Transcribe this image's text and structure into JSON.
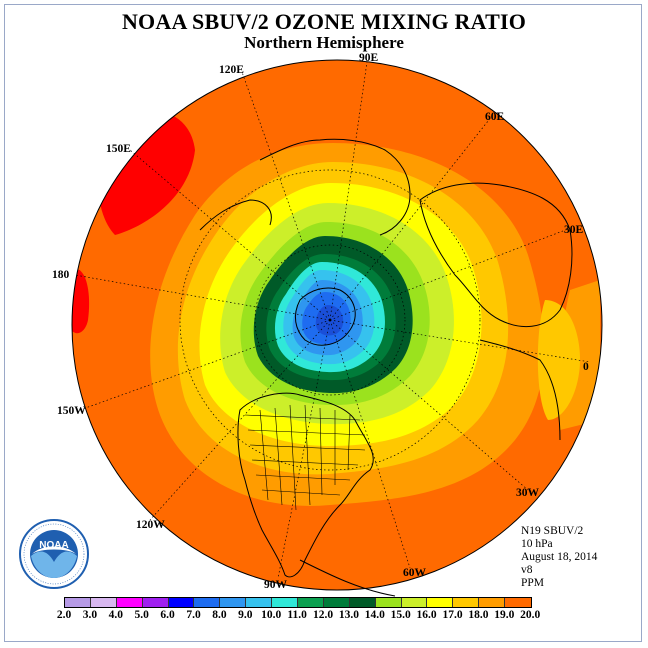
{
  "header": {
    "title": "NOAA SBUV/2 OZONE MIXING RATIO",
    "subtitle": "Northern Hemisphere"
  },
  "map": {
    "projection": "polar-stereographic-north",
    "longitude_labels": [
      "90E",
      "60E",
      "30E",
      "0",
      "30W",
      "60W",
      "90W",
      "120W",
      "150W",
      "180",
      "150E",
      "120E"
    ],
    "field_description": "ozone mixing ratio contours; minimum (blue, ~6-8 PPM) near the pole, rising through green, yellow, orange to maximum (red, ~19 PPM) around 150E-180 at low latitudes"
  },
  "info": {
    "satellite": "N19 SBUV/2",
    "level": "10 hPa",
    "date": "August 18, 2014",
    "version": "v8",
    "units": "PPM"
  },
  "logo": {
    "text": "NOAA",
    "icon": "noaa-logo"
  },
  "colorbar": {
    "ticks": [
      "2.0",
      "3.0",
      "4.0",
      "5.0",
      "6.0",
      "7.0",
      "8.0",
      "9.0",
      "10.0",
      "11.0",
      "12.0",
      "13.0",
      "14.0",
      "15.0",
      "16.0",
      "17.0",
      "18.0",
      "19.0",
      "20.0"
    ],
    "colors": [
      "#b69ae6",
      "#d8b8f0",
      "#ff00ff",
      "#a020f0",
      "#0000ff",
      "#1e6cf0",
      "#2f96f0",
      "#36c2ee",
      "#30e8d8",
      "#0ba050",
      "#007c3a",
      "#005a28",
      "#9be21e",
      "#ccef2a",
      "#ffff00",
      "#ffc800",
      "#ff9c00",
      "#ff6a00",
      "#ff0000",
      "#8c5a3a"
    ]
  }
}
